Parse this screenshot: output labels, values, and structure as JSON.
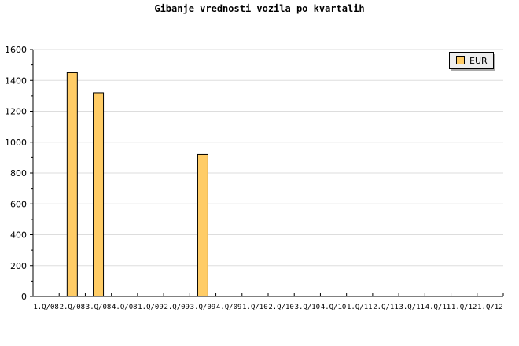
{
  "chart_data": {
    "type": "bar",
    "title": "Gibanje vrednosti vozila po kvartalih",
    "categories": [
      "1.Q/08",
      "2.Q/08",
      "3.Q/08",
      "4.Q/08",
      "1.Q/09",
      "2.Q/09",
      "3.Q/09",
      "4.Q/09",
      "1.Q/10",
      "2.Q/10",
      "3.Q/10",
      "4.Q/10",
      "1.Q/11",
      "2.Q/11",
      "3.Q/11",
      "4.Q/11",
      "1.Q/12",
      "1.Q/12"
    ],
    "series": [
      {
        "name": "EUR",
        "values": [
          null,
          1450,
          1320,
          null,
          null,
          null,
          920,
          null,
          null,
          null,
          null,
          null,
          null,
          null,
          null,
          null,
          null,
          null
        ],
        "color": "#ffcc66"
      }
    ],
    "ylim": [
      0,
      1600
    ],
    "yticks": [
      0,
      200,
      400,
      600,
      800,
      1000,
      1200,
      1400,
      1600
    ],
    "grid": true,
    "legend": "top-right",
    "xlabel": "",
    "ylabel": ""
  }
}
